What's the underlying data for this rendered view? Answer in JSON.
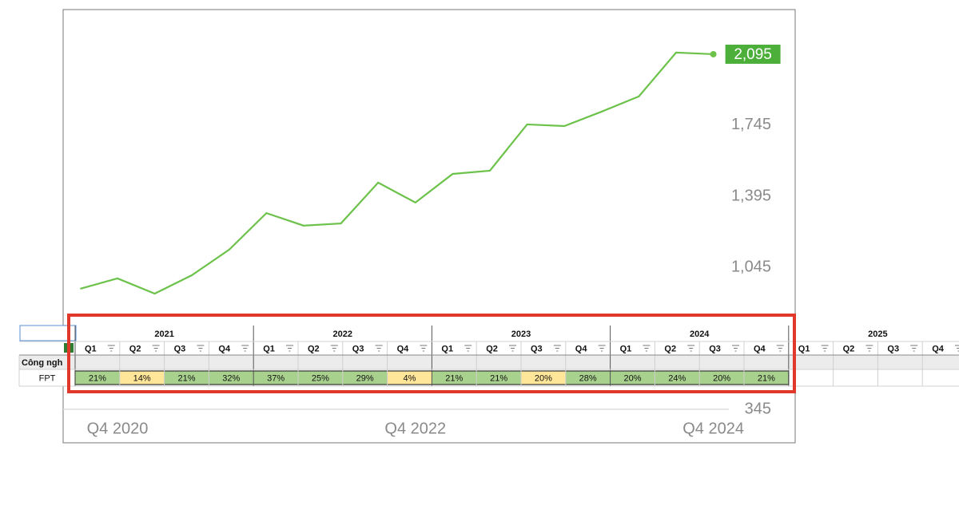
{
  "chart_data": {
    "type": "line",
    "categories": [
      null,
      "Q4 2020",
      null,
      null,
      null,
      null,
      null,
      null,
      null,
      "Q4 2022",
      null,
      null,
      null,
      null,
      null,
      null,
      null,
      "Q4 2024"
    ],
    "values": [
      939,
      990,
      915,
      1006,
      1132,
      1312,
      1250,
      1261,
      1462,
      1364,
      1505,
      1521,
      1749,
      1741,
      1812,
      1887,
      2103,
      2095
    ],
    "value_labels": [
      null,
      null,
      null,
      null,
      null,
      null,
      null,
      null,
      null,
      null,
      null,
      null,
      null,
      null,
      null,
      null,
      null,
      "2,095"
    ],
    "color": "#6cc24a",
    "ylim": [
      345,
      2315
    ],
    "yticks": [
      345,
      {
        "value": 1045,
        "label": "1,045"
      },
      {
        "value": 1395,
        "label": "1,395"
      },
      {
        "value": 1745,
        "label": "1,745"
      }
    ],
    "grid": false
  },
  "spreadsheet": {
    "years": [
      "2021",
      "2022",
      "2023",
      "2024",
      "2025"
    ],
    "quarters": [
      "Q1",
      "Q2",
      "Q3",
      "Q4"
    ],
    "group_row": "Công ngh",
    "row_label": "FPT",
    "cells": [
      "21%",
      "14%",
      "21%",
      "32%",
      "37%",
      "25%",
      "29%",
      "4%",
      "21%",
      "21%",
      "20%",
      "28%",
      "20%",
      "24%",
      "20%",
      "21%"
    ],
    "cell_colors": [
      "#a9d18e",
      "#ffe699",
      "#a9d18e",
      "#a9d18e",
      "#a9d18e",
      "#a9d18e",
      "#a9d18e",
      "#ffe699",
      "#a9d18e",
      "#a9d18e",
      "#ffe699",
      "#a9d18e",
      "#a9d18e",
      "#a9d18e",
      "#a9d18e",
      "#a9d18e"
    ]
  }
}
